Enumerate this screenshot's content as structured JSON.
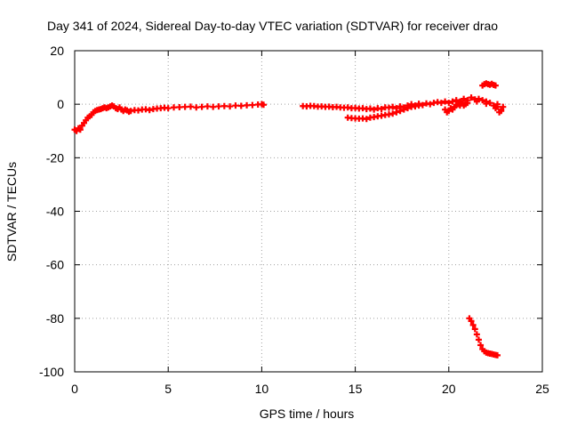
{
  "chart_data": {
    "type": "scatter",
    "title": "Day 341 of 2024, Sidereal Day-to-day VTEC variation (SDTVAR) for receiver drao",
    "xlabel": "GPS time / hours",
    "ylabel": "SDTVAR / TECUs",
    "xlim": [
      0,
      25
    ],
    "ylim": [
      -100,
      20
    ],
    "xticks": [
      0,
      5,
      10,
      15,
      20,
      25
    ],
    "yticks": [
      -100,
      -80,
      -60,
      -40,
      -20,
      0,
      20
    ],
    "grid": true,
    "marker": "+",
    "series": [
      {
        "name": "SDTVAR",
        "color": "#ff0000",
        "points": [
          [
            0.0,
            -9.5
          ],
          [
            0.1,
            -10
          ],
          [
            0.2,
            -9
          ],
          [
            0.3,
            -9.5
          ],
          [
            0.4,
            -8
          ],
          [
            0.5,
            -7
          ],
          [
            0.6,
            -6
          ],
          [
            0.7,
            -5
          ],
          [
            0.8,
            -4.5
          ],
          [
            0.9,
            -4
          ],
          [
            1.0,
            -3
          ],
          [
            1.1,
            -2.5
          ],
          [
            1.2,
            -2.2
          ],
          [
            1.3,
            -2
          ],
          [
            1.4,
            -1.8
          ],
          [
            1.5,
            -1.5
          ],
          [
            1.6,
            -1.2
          ],
          [
            1.7,
            -1.5
          ],
          [
            1.8,
            -1.2
          ],
          [
            1.9,
            -0.8
          ],
          [
            2.0,
            -0.5
          ],
          [
            2.1,
            -0.8
          ],
          [
            2.2,
            -1.5
          ],
          [
            2.3,
            -1.8
          ],
          [
            2.4,
            -1.2
          ],
          [
            2.5,
            -2
          ],
          [
            2.6,
            -2.5
          ],
          [
            2.7,
            -2
          ],
          [
            2.8,
            -2.3
          ],
          [
            2.9,
            -2.8
          ],
          [
            3.0,
            -2.5
          ],
          [
            3.2,
            -2.2
          ],
          [
            3.4,
            -2.3
          ],
          [
            3.6,
            -2
          ],
          [
            3.8,
            -1.9
          ],
          [
            4.0,
            -2.2
          ],
          [
            4.2,
            -1.8
          ],
          [
            4.4,
            -1.6
          ],
          [
            4.6,
            -1.5
          ],
          [
            4.8,
            -1.3
          ],
          [
            5.0,
            -1.5
          ],
          [
            5.3,
            -1.2
          ],
          [
            5.6,
            -1.1
          ],
          [
            5.9,
            -1
          ],
          [
            6.2,
            -0.9
          ],
          [
            6.5,
            -1.2
          ],
          [
            6.8,
            -1
          ],
          [
            7.1,
            -0.8
          ],
          [
            7.4,
            -1
          ],
          [
            7.7,
            -0.8
          ],
          [
            8.0,
            -0.7
          ],
          [
            8.3,
            -0.8
          ],
          [
            8.6,
            -0.5
          ],
          [
            8.9,
            -0.6
          ],
          [
            9.2,
            -0.4
          ],
          [
            9.5,
            -0.3
          ],
          [
            9.8,
            -0.1
          ],
          [
            10.0,
            0.0
          ],
          [
            10.1,
            -0.2
          ],
          [
            12.2,
            -0.7
          ],
          [
            12.4,
            -0.8
          ],
          [
            12.6,
            -0.6
          ],
          [
            12.8,
            -0.7
          ],
          [
            13.0,
            -0.9
          ],
          [
            13.2,
            -0.8
          ],
          [
            13.4,
            -1
          ],
          [
            13.6,
            -0.9
          ],
          [
            13.8,
            -1.1
          ],
          [
            14.0,
            -1.0
          ],
          [
            14.2,
            -1.2
          ],
          [
            14.4,
            -1.3
          ],
          [
            14.6,
            -1.2
          ],
          [
            14.8,
            -1.5
          ],
          [
            15.0,
            -1.4
          ],
          [
            15.2,
            -1.6
          ],
          [
            15.4,
            -1.5
          ],
          [
            15.6,
            -1.8
          ],
          [
            15.8,
            -1.6
          ],
          [
            16.0,
            -2.0
          ],
          [
            16.2,
            -1.5
          ],
          [
            16.4,
            -1.8
          ],
          [
            16.6,
            -1.2
          ],
          [
            16.8,
            -1.3
          ],
          [
            17.0,
            -1.0
          ],
          [
            17.2,
            -1.5
          ],
          [
            17.4,
            -0.8
          ],
          [
            17.6,
            -1.2
          ],
          [
            17.8,
            -0.5
          ],
          [
            18.0,
            0.0
          ],
          [
            18.2,
            -0.5
          ],
          [
            18.4,
            0.2
          ],
          [
            18.6,
            -0.3
          ],
          [
            18.8,
            0.3
          ],
          [
            19.0,
            0.0
          ],
          [
            19.2,
            0.5
          ],
          [
            19.4,
            0.8
          ],
          [
            19.6,
            0.5
          ],
          [
            19.8,
            1.0
          ],
          [
            20.0,
            0.5
          ],
          [
            20.2,
            1.0
          ],
          [
            20.4,
            1.5
          ],
          [
            20.6,
            1.0
          ],
          [
            20.8,
            2.0
          ],
          [
            21.0,
            1.5
          ],
          [
            21.2,
            2.5
          ],
          [
            21.4,
            1.8
          ],
          [
            21.6,
            2.0
          ],
          [
            21.8,
            1.5
          ],
          [
            22.0,
            1.0
          ],
          [
            22.2,
            0.5
          ],
          [
            22.4,
            -0.5
          ],
          [
            22.6,
            -1.0
          ],
          [
            22.8,
            -2.0
          ],
          [
            14.6,
            -5.0
          ],
          [
            14.8,
            -5.2
          ],
          [
            15.0,
            -5.3
          ],
          [
            15.2,
            -5.4
          ],
          [
            15.4,
            -5.3
          ],
          [
            15.6,
            -5.5
          ],
          [
            15.8,
            -5.0
          ],
          [
            16.0,
            -4.8
          ],
          [
            16.2,
            -4.5
          ],
          [
            16.4,
            -4.3
          ],
          [
            16.6,
            -4.0
          ],
          [
            16.8,
            -3.8
          ],
          [
            17.0,
            -3.5
          ],
          [
            17.2,
            -3.0
          ],
          [
            17.4,
            -2.5
          ],
          [
            17.6,
            -2.0
          ],
          [
            17.8,
            -1.5
          ],
          [
            18.0,
            -1.0
          ],
          [
            18.2,
            -0.8
          ],
          [
            18.4,
            -0.5
          ],
          [
            19.8,
            -2.0
          ],
          [
            19.9,
            -3.0
          ],
          [
            20.0,
            -2.5
          ],
          [
            20.1,
            -1.5
          ],
          [
            20.2,
            -2.0
          ],
          [
            20.3,
            -1.0
          ],
          [
            20.4,
            -0.5
          ],
          [
            20.5,
            0.0
          ],
          [
            20.6,
            -0.5
          ],
          [
            20.7,
            0.5
          ],
          [
            20.8,
            -0.5
          ],
          [
            20.9,
            0.0
          ],
          [
            21.0,
            0.5
          ],
          [
            21.5,
            1.0
          ],
          [
            22.0,
            0.2
          ],
          [
            22.5,
            -1.5
          ],
          [
            22.7,
            -3.0
          ],
          [
            22.8,
            -2.5
          ],
          [
            22.9,
            -1.0
          ],
          [
            22.6,
            0.0
          ],
          [
            21.8,
            7.0
          ],
          [
            21.9,
            7.5
          ],
          [
            22.0,
            7.8
          ],
          [
            22.1,
            7.5
          ],
          [
            22.2,
            7.3
          ],
          [
            22.3,
            7.6
          ],
          [
            22.4,
            7.2
          ],
          [
            22.5,
            7.0
          ],
          [
            21.1,
            -80.0
          ],
          [
            21.2,
            -81.0
          ],
          [
            21.3,
            -82.5
          ],
          [
            21.4,
            -84.0
          ],
          [
            21.5,
            -86.0
          ],
          [
            21.6,
            -88.0
          ],
          [
            21.7,
            -90.0
          ],
          [
            21.8,
            -91.5
          ],
          [
            21.9,
            -92.3
          ],
          [
            22.0,
            -92.8
          ],
          [
            22.1,
            -93.0
          ],
          [
            22.2,
            -93.2
          ],
          [
            22.3,
            -93.3
          ],
          [
            22.4,
            -93.5
          ],
          [
            22.5,
            -93.7
          ],
          [
            22.6,
            -93.8
          ]
        ]
      }
    ]
  }
}
